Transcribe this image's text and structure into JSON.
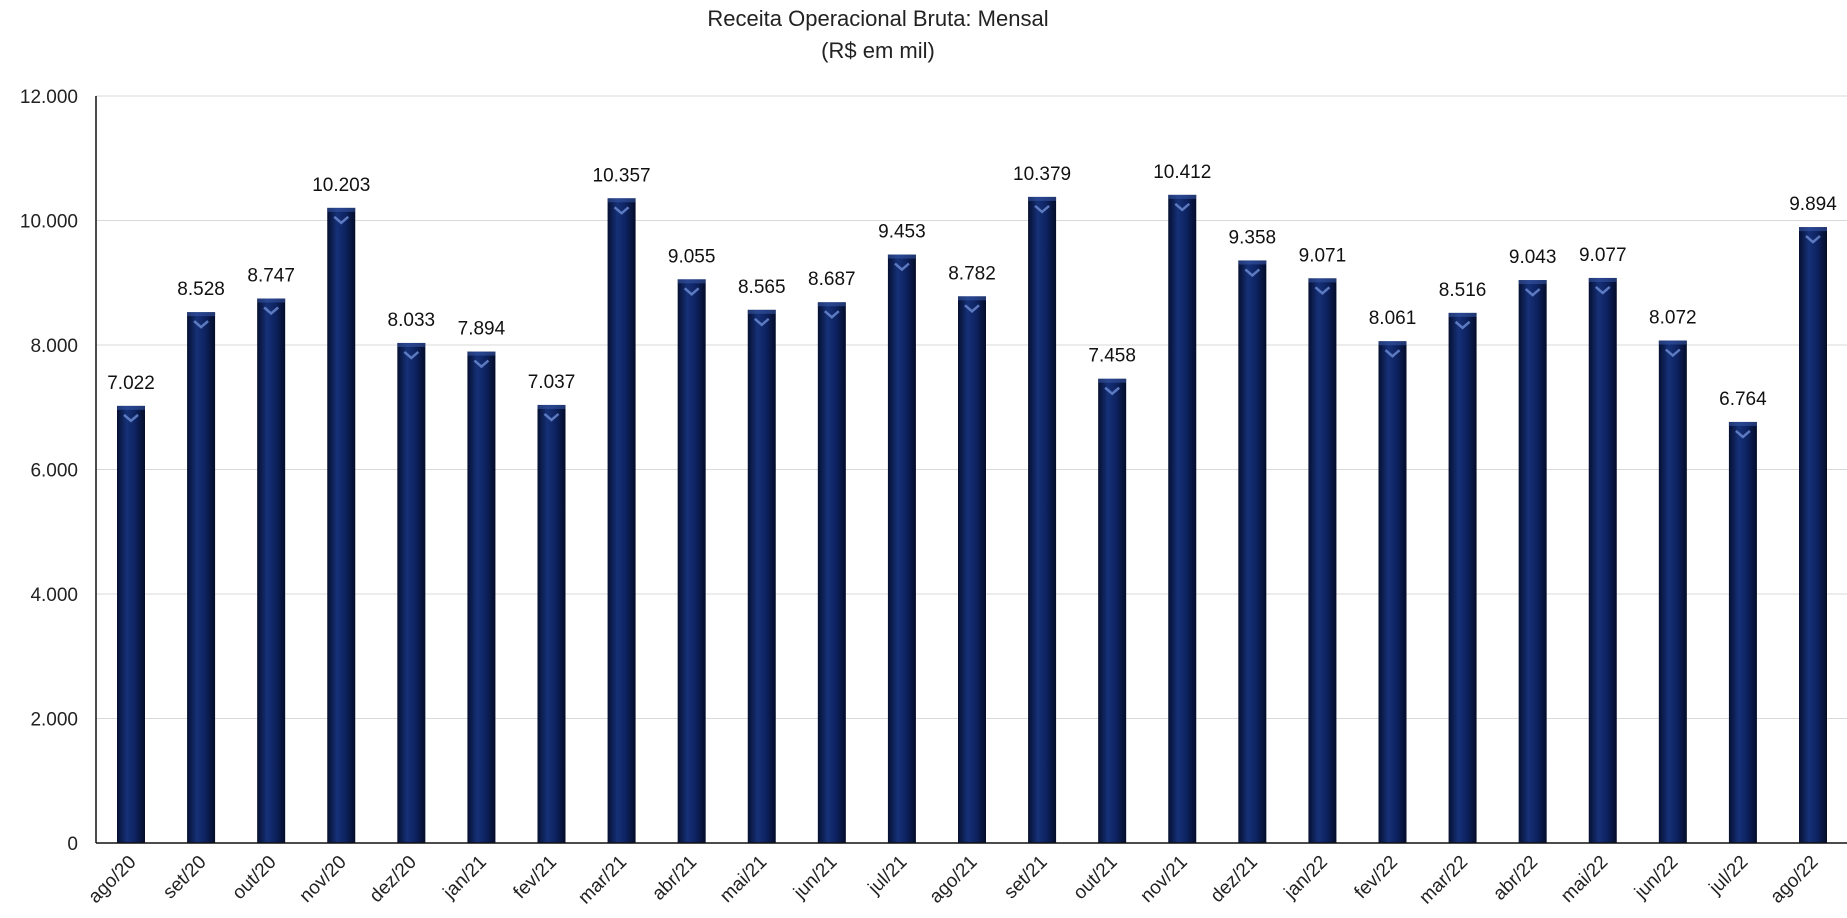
{
  "chart_data": {
    "type": "bar",
    "title": "Receita Operacional Bruta: Mensal",
    "subtitle": "(R$ em mil)",
    "xlabel": "",
    "ylabel": "",
    "ylim": [
      0,
      12000
    ],
    "yticks": [
      0,
      2000,
      4000,
      6000,
      8000,
      10000,
      12000
    ],
    "ytick_labels": [
      "0",
      "2.000",
      "4.000",
      "6.000",
      "8.000",
      "10.000",
      "12.000"
    ],
    "grid": true,
    "legend": "none",
    "bar_color": "#0d2260",
    "categories": [
      "ago/20",
      "set/20",
      "out/20",
      "nov/20",
      "dez/20",
      "jan/21",
      "fev/21",
      "mar/21",
      "abr/21",
      "mai/21",
      "jun/21",
      "jul/21",
      "ago/21",
      "set/21",
      "out/21",
      "nov/21",
      "dez/21",
      "jan/22",
      "fev/22",
      "mar/22",
      "abr/22",
      "mai/22",
      "jun/22",
      "jul/22",
      "ago/22"
    ],
    "values": [
      7022,
      8528,
      8747,
      10203,
      8033,
      7894,
      7037,
      10357,
      9055,
      8565,
      8687,
      9453,
      8782,
      10379,
      7458,
      10412,
      9358,
      9071,
      8061,
      8516,
      9043,
      9077,
      8072,
      6764,
      9894
    ],
    "data_labels": [
      "7.022",
      "8.528",
      "8.747",
      "10.203",
      "8.033",
      "7.894",
      "7.037",
      "10.357",
      "9.055",
      "8.565",
      "8.687",
      "9.453",
      "8.782",
      "10.379",
      "7.458",
      "10.412",
      "9.358",
      "9.071",
      "8.061",
      "8.516",
      "9.043",
      "9.077",
      "8.072",
      "6.764",
      "9.894"
    ]
  }
}
